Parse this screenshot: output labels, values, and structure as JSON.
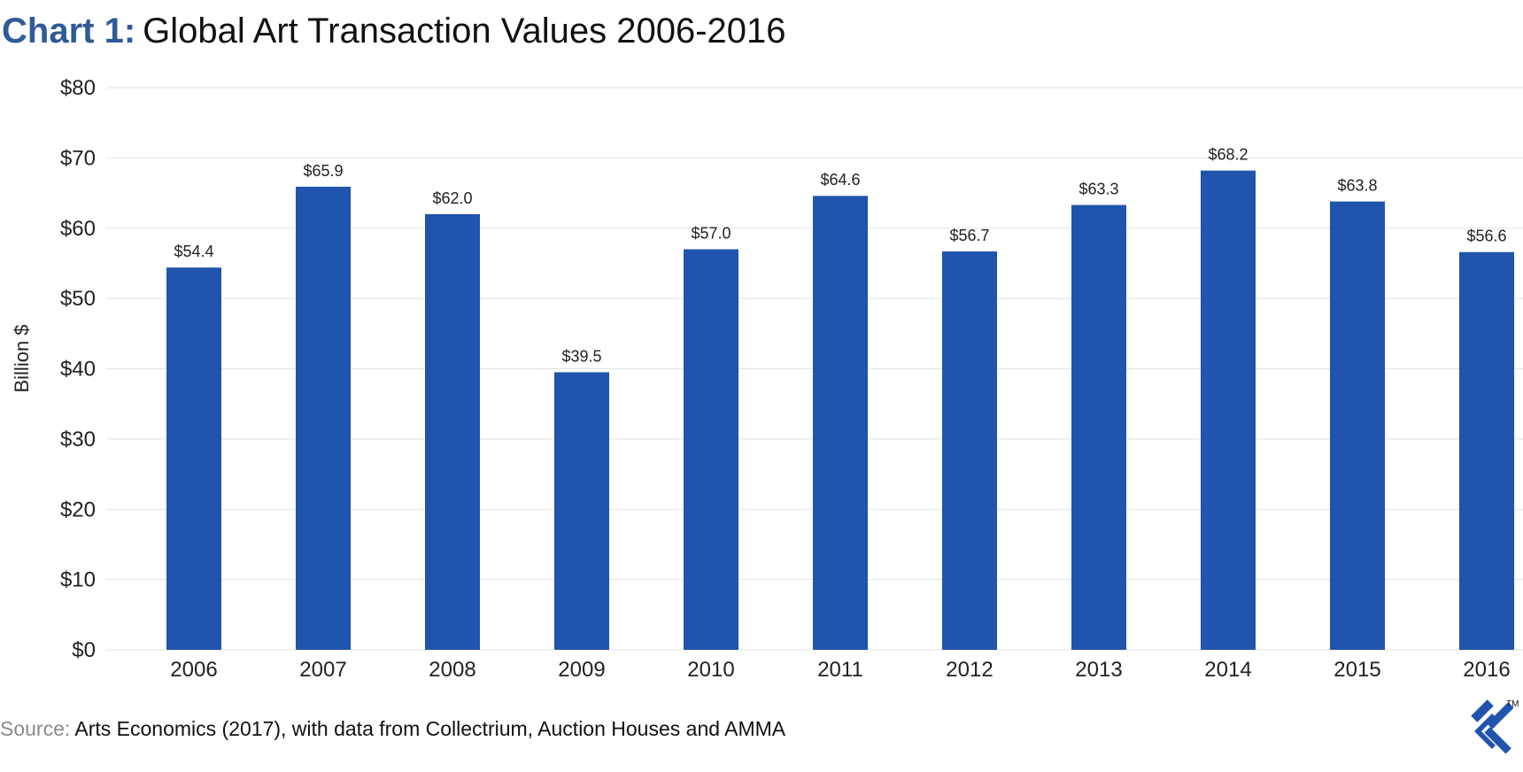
{
  "title": {
    "prefix": "Chart 1:",
    "main": "Global Art Transaction Values 2006-2016"
  },
  "source": {
    "prefix": "Source:",
    "text": " Arts Economics (2017), with data from Collectrium, Auction Houses and AMMA"
  },
  "logo": {
    "icon": "toptal-logo-icon",
    "trademark": "TM"
  },
  "colors": {
    "bar": "#2054ad",
    "title_prefix": "#2f5a98",
    "gridline": "#e3e3e3",
    "source_prefix": "#8a8a8a",
    "logo": "#2054ad"
  },
  "chart_data": {
    "type": "bar",
    "categories": [
      "2006",
      "2007",
      "2008",
      "2009",
      "2010",
      "2011",
      "2012",
      "2013",
      "2014",
      "2015",
      "2016"
    ],
    "values": [
      54.4,
      65.9,
      62.0,
      39.5,
      57.0,
      64.6,
      56.7,
      63.3,
      68.2,
      63.8,
      56.6
    ],
    "value_labels": [
      "$54.4",
      "$65.9",
      "$62.0",
      "$39.5",
      "$57.0",
      "$64.6",
      "$56.7",
      "$63.3",
      "$68.2",
      "$63.8",
      "$56.6"
    ],
    "ylabel": "Billion $",
    "ylim": [
      0,
      80
    ],
    "yticks": [
      0,
      10,
      20,
      30,
      40,
      50,
      60,
      70,
      80
    ],
    "ytick_labels": [
      "$0",
      "$10",
      "$20",
      "$30",
      "$40",
      "$50",
      "$60",
      "$70",
      "$80"
    ],
    "grid": true,
    "legend": "none"
  }
}
